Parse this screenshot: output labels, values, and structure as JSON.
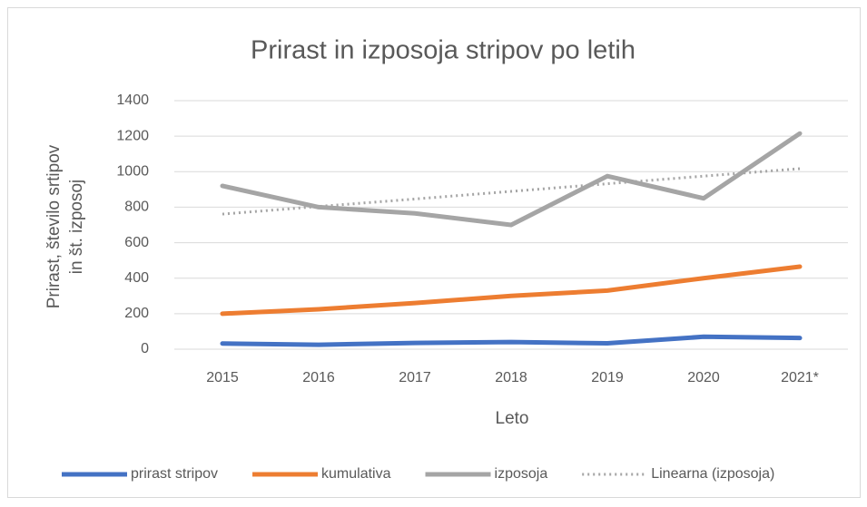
{
  "chart_data": {
    "type": "line",
    "title": "Prirast in izposoja stripov po letih",
    "x_label": "Leto",
    "y_label": [
      "Prirast, število srtipov",
      "in št. izposoj"
    ],
    "categories": [
      "2015",
      "2016",
      "2017",
      "2018",
      "2019",
      "2020",
      "2021*"
    ],
    "series": [
      {
        "name": "prirast stripov",
        "color": "#4472c4",
        "style": "solid",
        "values": [
          32,
          25,
          35,
          40,
          33,
          70,
          63
        ]
      },
      {
        "name": "kumulativa",
        "color": "#ed7d31",
        "style": "solid",
        "values": [
          200,
          225,
          260,
          300,
          330,
          400,
          465
        ]
      },
      {
        "name": "izposoja",
        "color": "#a5a5a5",
        "style": "solid",
        "values": [
          920,
          800,
          765,
          700,
          975,
          850,
          1215
        ]
      },
      {
        "name": "Linearna (izposoja)",
        "color": "#a5a5a5",
        "style": "dotted",
        "values": [
          761,
          804,
          846,
          889,
          932,
          975,
          1017
        ]
      }
    ],
    "ylim": [
      0,
      1400
    ],
    "yticks": [
      0,
      200,
      400,
      600,
      800,
      1000,
      1200,
      1400
    ],
    "grid": true,
    "legend": "bottom"
  }
}
